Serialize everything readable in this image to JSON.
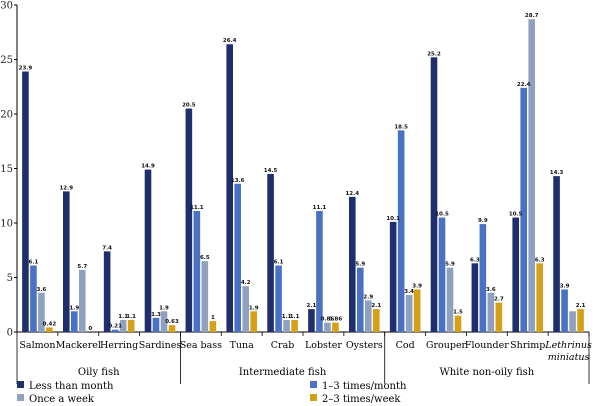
{
  "chart_data": {
    "type": "bar",
    "ylim": [
      0,
      30
    ],
    "yticks": [
      0,
      5,
      10,
      15,
      20,
      25,
      30
    ],
    "categories": [
      "Salmon",
      "Mackerel",
      "Herring",
      "Sardines",
      "Sea bass",
      "Tuna",
      "Crab",
      "Lobster",
      "Oysters",
      "Cod",
      "Grouper",
      "Flounder",
      "Shrimp",
      "Lethrinus miniatus"
    ],
    "category_lines": [
      [
        "Salmon"
      ],
      [
        "Mackerel"
      ],
      [
        "Herring"
      ],
      [
        "Sardines"
      ],
      [
        "Sea bass"
      ],
      [
        "Tuna"
      ],
      [
        "Crab"
      ],
      [
        "Lobster"
      ],
      [
        "Oysters"
      ],
      [
        "Cod"
      ],
      [
        "Grouper"
      ],
      [
        "Flounder"
      ],
      [
        "Shrimp"
      ],
      [
        "Lethrinus",
        "miniatus"
      ]
    ],
    "series": [
      {
        "name": "Less than month",
        "color": "#1f2f6e",
        "values": [
          23.9,
          12.9,
          7.4,
          14.9,
          20.5,
          26.4,
          14.5,
          2.1,
          12.4,
          10.1,
          25.2,
          6.3,
          10.5,
          14.3
        ]
      },
      {
        "name": "1–3 times/month",
        "color": "#4a72c4",
        "values": [
          6.1,
          1.9,
          0.21,
          1.3,
          11.1,
          13.6,
          6.1,
          11.1,
          5.9,
          18.5,
          10.5,
          9.9,
          22.4,
          3.9
        ]
      },
      {
        "name": "Once a week",
        "color": "#8fa1bf",
        "values": [
          3.6,
          5.7,
          1.1,
          1.9,
          6.5,
          4.2,
          1.1,
          0.86,
          2.9,
          3.4,
          5.9,
          3.6,
          28.7,
          1.9
        ]
      },
      {
        "name": "2–3 times/week",
        "color": "#d4a017",
        "values": [
          0.42,
          0,
          1.1,
          0.63,
          1,
          1.9,
          1.1,
          0.86,
          2.1,
          3.9,
          1.5,
          2.7,
          6.3,
          2.1
        ]
      }
    ],
    "data_labels": [
      [
        "23.9",
        "6.1",
        "3.6",
        "0.42"
      ],
      [
        "12.9",
        "1.9",
        "5.7",
        "0"
      ],
      [
        "7.4",
        "0.21",
        "1.1",
        "1.1"
      ],
      [
        "14.9",
        "1.3",
        "1.9",
        "0.63"
      ],
      [
        "20.5",
        "11.1",
        "6.5",
        "1"
      ],
      [
        "26.4",
        "13.6",
        "4.2",
        "1.9"
      ],
      [
        "14.5",
        "6.1",
        "1.1",
        "1.1"
      ],
      [
        "2.1",
        "11.1",
        "0.86",
        "0.86"
      ],
      [
        "12.4",
        "5.9",
        "2.9",
        "2.1"
      ],
      [
        "10.1",
        "18.5",
        "3.4",
        "3.9"
      ],
      [
        "25.2",
        "10.5",
        "5.9",
        "1.5"
      ],
      [
        "6.3",
        "9.9",
        "3.6",
        "2.7"
      ],
      [
        "10.5",
        "22.4",
        "28.7",
        "6.3"
      ],
      [
        "14.3",
        "3.9",
        "",
        "2.1"
      ]
    ],
    "groups": [
      {
        "name": "Oily fish",
        "start": 0,
        "end": 3
      },
      {
        "name": "Intermediate fish",
        "start": 4,
        "end": 8
      },
      {
        "name": "White non-oily fish",
        "start": 9,
        "end": 13
      }
    ],
    "legend": {
      "placement": "bottom",
      "order": [
        0,
        2,
        1,
        3
      ]
    },
    "grid": false
  }
}
